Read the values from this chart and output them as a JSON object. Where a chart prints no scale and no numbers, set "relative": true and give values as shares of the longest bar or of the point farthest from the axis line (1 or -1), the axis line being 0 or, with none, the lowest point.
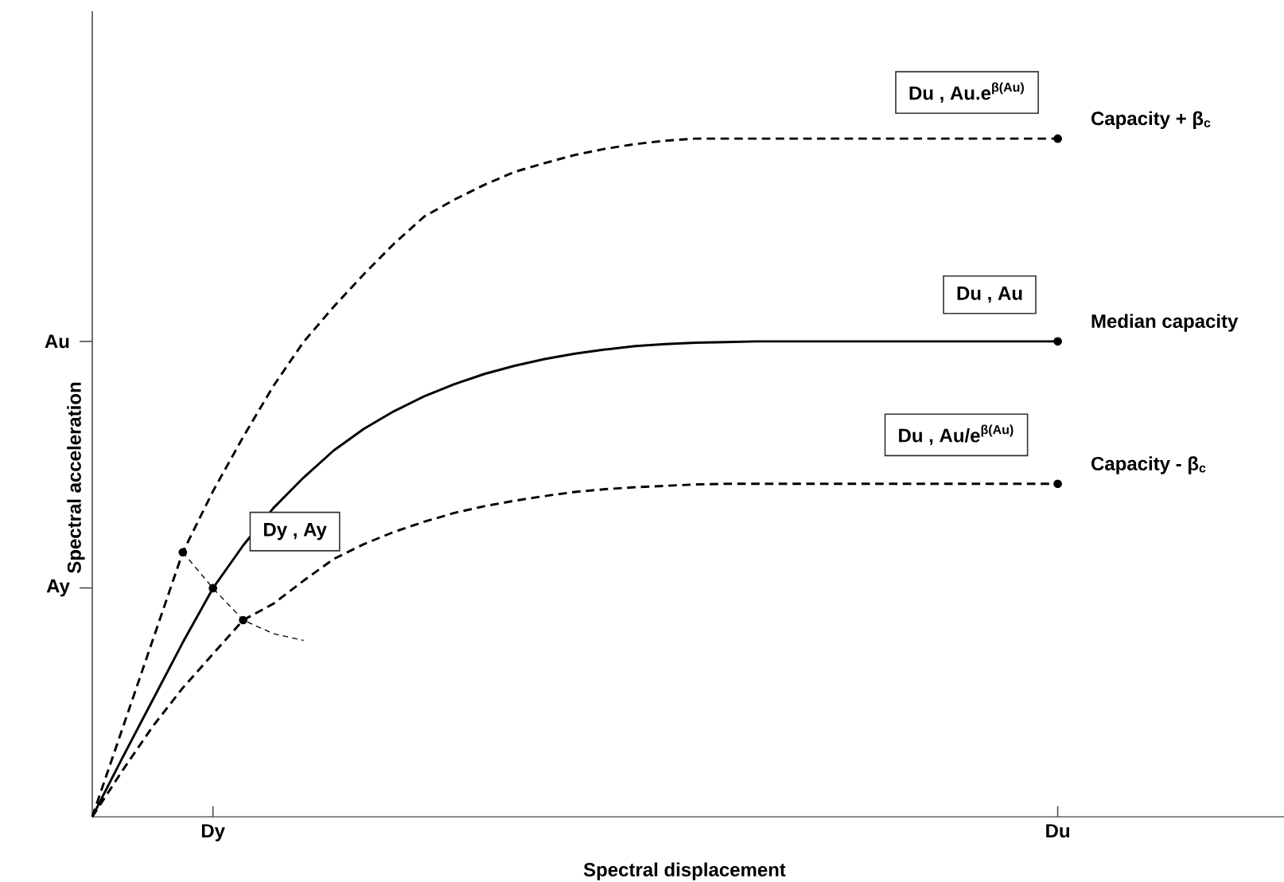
{
  "chart_data": {
    "type": "line",
    "relative": true,
    "xlabel": "Spectral displacement",
    "ylabel": "Spectral acceleration",
    "categories": [
      null,
      null,
      null,
      null,
      "Dy",
      null,
      null,
      null,
      null,
      null,
      null,
      null,
      null,
      null,
      null,
      null,
      null,
      null,
      null,
      null,
      null,
      null,
      null,
      null,
      null,
      null,
      null,
      null,
      null,
      null,
      null,
      null,
      "Du",
      null,
      null,
      null,
      null,
      null,
      null,
      null
    ],
    "series": [
      {
        "name": "Capacity + β$_{c}$",
        "color": "#000000",
        "line_style": "dashed",
        "values": [
          0,
          0.13,
          0.26,
          0.39,
          0.48,
          0.56,
          0.635,
          0.7,
          0.752,
          0.8,
          0.845,
          0.885,
          0.91,
          0.932,
          0.951,
          0.964,
          0.976,
          0.985,
          0.992,
          0.997,
          1,
          1,
          1,
          1,
          1,
          1,
          1,
          1,
          1,
          1,
          1,
          1,
          1,
          null,
          null,
          null,
          null,
          null,
          null,
          null
        ]
      },
      {
        "name": "Median capacity",
        "color": "#000000",
        "line_style": "solid",
        "values": [
          0,
          0.087,
          0.172,
          0.257,
          0.337,
          0.4,
          0.455,
          0.5,
          0.54,
          0.572,
          0.598,
          0.62,
          0.638,
          0.653,
          0.665,
          0.675,
          0.683,
          0.689,
          0.694,
          0.697,
          0.699,
          0.7,
          0.701,
          0.701,
          0.701,
          0.701,
          0.701,
          0.701,
          0.701,
          0.701,
          0.701,
          0.701,
          0.701,
          null,
          null,
          null,
          null,
          null,
          null,
          null
        ]
      },
      {
        "name": "Capacity - β$_{c}$",
        "color": "#000000",
        "line_style": "dashed",
        "values": [
          0,
          0.068,
          0.133,
          0.19,
          0.24,
          0.29,
          0.314,
          0.348,
          0.38,
          0.402,
          0.42,
          0.435,
          0.448,
          0.458,
          0.466,
          0.473,
          0.479,
          0.483,
          0.486,
          0.488,
          0.49,
          0.491,
          0.491,
          0.491,
          0.491,
          0.491,
          0.491,
          0.491,
          0.491,
          0.491,
          0.491,
          0.491,
          0.491,
          null,
          null,
          null,
          null,
          null,
          null,
          null
        ]
      },
      {
        "color": "#000000",
        "line_style": "dotted",
        "values": [
          null,
          null,
          null,
          0.39,
          0.337,
          0.29,
          0.27,
          0.26,
          null,
          null,
          null,
          null,
          null,
          null,
          null,
          null,
          null,
          null,
          null,
          null,
          null,
          null,
          null,
          null,
          null,
          null,
          null,
          null,
          null,
          null,
          null,
          null,
          null,
          null,
          null,
          null,
          null,
          null,
          null,
          null
        ]
      },
      {
        "type": "scatter",
        "marker": "circle",
        "color": "#000000",
        "values": [
          null,
          null,
          null,
          0.39,
          null,
          null,
          null,
          null,
          null,
          null,
          null,
          null,
          null,
          null,
          null,
          null,
          null,
          null,
          null,
          null,
          null,
          null,
          null,
          null,
          null,
          null,
          null,
          null,
          null,
          null,
          null,
          null,
          1,
          null,
          null,
          null,
          null,
          null,
          null,
          null
        ]
      },
      {
        "type": "scatter",
        "marker": "circle",
        "color": "#000000",
        "values": [
          null,
          null,
          null,
          null,
          0.337,
          null,
          null,
          null,
          null,
          null,
          null,
          null,
          null,
          null,
          null,
          null,
          null,
          null,
          null,
          null,
          null,
          null,
          null,
          null,
          null,
          null,
          null,
          null,
          null,
          null,
          null,
          null,
          0.701,
          null,
          null,
          null,
          null,
          null,
          null,
          null
        ]
      },
      {
        "type": "scatter",
        "marker": "circle",
        "color": "#000000",
        "values": [
          null,
          null,
          null,
          null,
          null,
          0.29,
          null,
          null,
          null,
          null,
          null,
          null,
          null,
          null,
          null,
          null,
          null,
          null,
          null,
          null,
          null,
          null,
          null,
          null,
          null,
          null,
          null,
          null,
          null,
          null,
          null,
          null,
          0.491,
          null,
          null,
          null,
          null,
          null,
          null,
          null
        ]
      }
    ],
    "annotations": [
      "Du , Au.e$^{β(Au)}$",
      "Du , Au",
      "Du , Au/e$^{β(Au)}$",
      "Dy , Ay",
      "Au",
      "Ay"
    ]
  }
}
